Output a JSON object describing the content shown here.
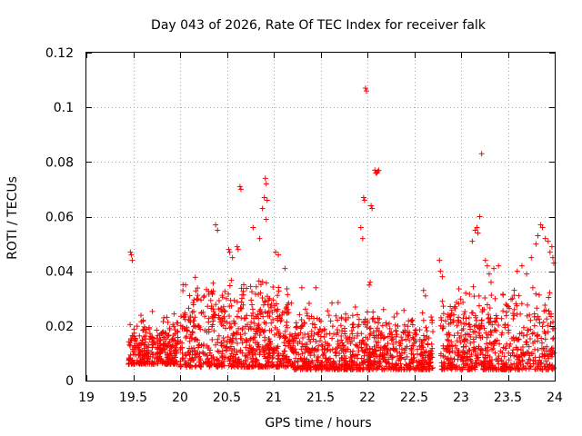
{
  "chart_data": {
    "type": "scatter",
    "title": "Day 043 of 2026, Rate Of TEC Index for receiver falk",
    "xlabel": "GPS time / hours",
    "ylabel": "ROTI / TECUs",
    "xlim": [
      19,
      24
    ],
    "ylim": [
      0,
      0.12
    ],
    "x_ticks": [
      19,
      19.5,
      20,
      20.5,
      21,
      21.5,
      22,
      22.5,
      23,
      23.5,
      24
    ],
    "x_tick_labels": [
      "19",
      "19.5",
      "20",
      "20.5",
      "21",
      "21.5",
      "22",
      "22.5",
      "23",
      "23.5",
      "24"
    ],
    "y_ticks": [
      0,
      0.02,
      0.04,
      0.06,
      0.08,
      0.1,
      0.12
    ],
    "y_tick_labels": [
      "0",
      "0.02",
      "0.04",
      "0.06",
      "0.08",
      "0.1",
      "0.12"
    ],
    "grid": true,
    "marker": "+",
    "color": "#ff0000",
    "series": [
      {
        "name": "ROTI",
        "points": [
          [
            19.47,
            0.047
          ],
          [
            19.48,
            0.046
          ],
          [
            19.49,
            0.044
          ],
          [
            20.38,
            0.057
          ],
          [
            20.4,
            0.055
          ],
          [
            20.52,
            0.048
          ],
          [
            20.53,
            0.047
          ],
          [
            20.56,
            0.045
          ],
          [
            20.61,
            0.049
          ],
          [
            20.62,
            0.048
          ],
          [
            20.64,
            0.071
          ],
          [
            20.65,
            0.07
          ],
          [
            20.78,
            0.056
          ],
          [
            20.85,
            0.052
          ],
          [
            20.88,
            0.063
          ],
          [
            20.9,
            0.067
          ],
          [
            20.91,
            0.074
          ],
          [
            20.92,
            0.072
          ],
          [
            20.93,
            0.066
          ],
          [
            20.92,
            0.059
          ],
          [
            21.02,
            0.047
          ],
          [
            21.05,
            0.046
          ],
          [
            21.12,
            0.041
          ],
          [
            21.3,
            0.034
          ],
          [
            21.45,
            0.034
          ],
          [
            21.93,
            0.056
          ],
          [
            21.95,
            0.052
          ],
          [
            21.96,
            0.067
          ],
          [
            21.97,
            0.066
          ],
          [
            21.98,
            0.107
          ],
          [
            21.99,
            0.106
          ],
          [
            22.04,
            0.064
          ],
          [
            22.05,
            0.063
          ],
          [
            22.08,
            0.077
          ],
          [
            22.09,
            0.076
          ],
          [
            22.1,
            0.076
          ],
          [
            22.12,
            0.077
          ],
          [
            22.11,
            0.0765
          ],
          [
            22.03,
            0.036
          ],
          [
            22.02,
            0.035
          ],
          [
            22.6,
            0.033
          ],
          [
            22.62,
            0.031
          ],
          [
            22.77,
            0.044
          ],
          [
            22.78,
            0.04
          ],
          [
            22.8,
            0.038
          ],
          [
            22.8,
            0.029
          ],
          [
            23.05,
            0.032
          ],
          [
            23.12,
            0.051
          ],
          [
            23.15,
            0.055
          ],
          [
            23.17,
            0.056
          ],
          [
            23.18,
            0.054
          ],
          [
            23.2,
            0.06
          ],
          [
            23.22,
            0.083
          ],
          [
            23.26,
            0.044
          ],
          [
            23.28,
            0.042
          ],
          [
            23.3,
            0.039
          ],
          [
            23.32,
            0.036
          ],
          [
            23.35,
            0.041
          ],
          [
            23.4,
            0.042
          ],
          [
            23.55,
            0.03
          ],
          [
            23.6,
            0.04
          ],
          [
            23.65,
            0.042
          ],
          [
            23.7,
            0.039
          ],
          [
            23.75,
            0.045
          ],
          [
            23.8,
            0.05
          ],
          [
            23.82,
            0.053
          ],
          [
            23.85,
            0.057
          ],
          [
            23.87,
            0.056
          ],
          [
            23.9,
            0.052
          ],
          [
            23.93,
            0.051
          ],
          [
            23.95,
            0.047
          ],
          [
            23.97,
            0.049
          ],
          [
            23.98,
            0.045
          ],
          [
            23.99,
            0.043
          ]
        ],
        "dense_bands": [
          {
            "x_from": 19.45,
            "x_to": 19.98,
            "y_min": 0.006,
            "y_max": 0.026,
            "count": 320
          },
          {
            "x_from": 20.0,
            "x_to": 21.2,
            "y_min": 0.005,
            "y_max": 0.04,
            "count": 700
          },
          {
            "x_from": 21.2,
            "x_to": 22.0,
            "y_min": 0.004,
            "y_max": 0.03,
            "count": 420
          },
          {
            "x_from": 22.0,
            "x_to": 22.7,
            "y_min": 0.004,
            "y_max": 0.028,
            "count": 380
          },
          {
            "x_from": 22.78,
            "x_to": 24.0,
            "y_min": 0.004,
            "y_max": 0.036,
            "count": 620
          }
        ]
      }
    ]
  }
}
